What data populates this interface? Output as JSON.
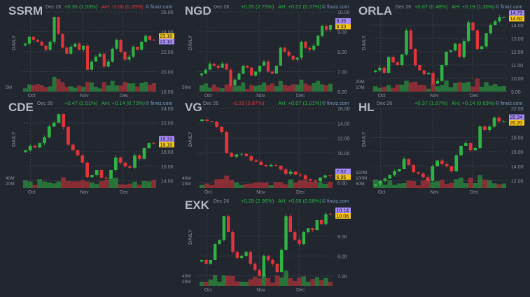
{
  "colors": {
    "background": "#22262f",
    "up": "#2fb344",
    "down": "#e0353b",
    "ah_tag": "#a78bfa",
    "close_tag": "#f5c518",
    "text": "#8a91a0",
    "ticker": "#b4b9c4"
  },
  "common": {
    "date": "Dec 26",
    "ah_prefix": "AH:",
    "source": "© finviz.com",
    "timeframe": "DAILY",
    "months": [
      "Oct",
      "Nov",
      "Dec"
    ]
  },
  "chart_data": [
    {
      "type": "candlestick",
      "ticker": "SSRM",
      "change": "+0.35 (1.53%)",
      "change_dir": "up",
      "ah": "-0.06 (0.26%)",
      "ah_dir": "down",
      "ylim": [
        18,
        26
      ],
      "yticks": [
        "26.00",
        "24.00",
        "22.00",
        "20.00",
        "18.00"
      ],
      "close_tag": "23.16",
      "ah_tag": "23.10",
      "tag_order": [
        "close",
        "ah"
      ],
      "volume_labels": [
        "5M"
      ],
      "closes": [
        22.8,
        23.5,
        23.2,
        23.0,
        22.6,
        22.2,
        23.0,
        25.5,
        23.8,
        22.4,
        21.8,
        22.5,
        22.8,
        22.2,
        22.6,
        20.2,
        21.0,
        21.5,
        21.8,
        20.5,
        21.0,
        22.3,
        23.2,
        22.0,
        21.2,
        21.5,
        22.5,
        22.2,
        23.0,
        23.6,
        23.2,
        23.16
      ]
    },
    {
      "type": "candlestick",
      "ticker": "NGD",
      "change": "+0.25 (2.75%)",
      "change_dir": "up",
      "ah": "+0.02 (0.27%)",
      "ah_dir": "up",
      "ylim": [
        6,
        10
      ],
      "yticks": [
        "10.00",
        "9.00",
        "8.00",
        "7.00",
        "6.00"
      ],
      "close_tag": "9.33",
      "ah_tag": "9.35",
      "tag_order": [
        "ah",
        "close"
      ],
      "volume_labels": [
        "50M"
      ],
      "closes": [
        6.9,
        7.1,
        7.4,
        7.3,
        7.2,
        7.4,
        7.1,
        6.3,
        6.6,
        6.9,
        7.3,
        7.2,
        6.8,
        7.0,
        7.3,
        7.5,
        7.0,
        6.9,
        7.3,
        8.2,
        8.0,
        7.8,
        7.6,
        7.7,
        8.5,
        8.2,
        8.1,
        8.3,
        8.8,
        9.3,
        9.1,
        9.33
      ]
    },
    {
      "type": "candlestick",
      "ticker": "ORLA",
      "change": "+0.07 (0.48%)",
      "change_dir": "up",
      "ah": "+0.19 (1.30%)",
      "ah_dir": "up",
      "ylim": [
        9,
        15
      ],
      "yticks": [
        "14.00",
        "13.00",
        "12.00",
        "11.00",
        "10.00",
        "9.00"
      ],
      "close_tag": "14.60",
      "ah_tag": "14.79",
      "tag_order": [
        "ah",
        "close"
      ],
      "volume_labels": [
        "20M",
        "10M"
      ],
      "closes": [
        10.6,
        10.8,
        10.4,
        11.6,
        11.2,
        11.0,
        11.8,
        13.6,
        12.2,
        11.0,
        10.6,
        10.3,
        10.4,
        9.6,
        9.8,
        11.0,
        12.0,
        12.1,
        12.6,
        11.6,
        12.8,
        14.2,
        13.6,
        12.2,
        12.4,
        13.4,
        14.0,
        14.3,
        14.6,
        14.6
      ]
    },
    {
      "type": "candlestick",
      "ticker": "CDE",
      "change": "+0.47 (2.51%)",
      "change_dir": "up",
      "ah": "+0.14 (0.73%)",
      "ah_dir": "up",
      "ylim": [
        13,
        24
      ],
      "yticks": [
        "24.00",
        "22.00",
        "18.00",
        "16.00",
        "14.00"
      ],
      "close_tag": "19.19",
      "ah_tag": "19.33",
      "tag_order": [
        "ah",
        "close"
      ],
      "volume_labels": [
        "40M",
        "20M"
      ],
      "closes": [
        18.2,
        18.8,
        18.6,
        19.2,
        20.0,
        21.5,
        22.0,
        23.2,
        21.4,
        19.0,
        18.2,
        17.5,
        16.5,
        14.5,
        14.8,
        15.5,
        14.4,
        14.3,
        15.5,
        17.2,
        16.5,
        16.0,
        15.8,
        17.5,
        17.0,
        18.5,
        19.2,
        19.19
      ]
    },
    {
      "type": "candlestick",
      "ticker": "VG",
      "change": "-0.28 (3.87%)",
      "change_dir": "down",
      "ah": "+0.07 (1.01%)",
      "ah_dir": "up",
      "ylim": [
        5.3,
        16
      ],
      "yticks": [
        "16.00",
        "14.00",
        "12.00",
        "10.00",
        "6.00"
      ],
      "close_tag": "6.95",
      "ah_tag": "7.02",
      "tag_order": [
        "ah",
        "close"
      ],
      "volume_labels": [
        "40M",
        "20M"
      ],
      "closes": [
        14.5,
        14.3,
        14.2,
        13.5,
        12.8,
        10.0,
        9.5,
        9.8,
        9.9,
        9.6,
        9.0,
        8.8,
        8.4,
        8.2,
        8.4,
        8.3,
        7.8,
        7.2,
        7.5,
        7.1,
        7.0,
        6.5,
        6.3,
        6.2,
        6.7,
        7.0,
        6.95
      ]
    },
    {
      "type": "candlestick",
      "ticker": "HL",
      "change": "+0.37 (1.87%)",
      "change_dir": "up",
      "ah": "+0.14 (0.69%)",
      "ah_dir": "up",
      "ylim": [
        11,
        22
      ],
      "yticks": [
        "22.00",
        "18.00",
        "16.00",
        "14.00",
        "12.00"
      ],
      "close_tag": "20.20",
      "ah_tag": "20.34",
      "tag_order": [
        "ah",
        "close"
      ],
      "volume_labels": [
        "150M",
        "100M",
        "50M"
      ],
      "closes": [
        11.5,
        12.0,
        12.3,
        12.8,
        13.3,
        13.6,
        15.0,
        14.2,
        13.2,
        13.0,
        12.5,
        12.0,
        14.0,
        14.8,
        14.3,
        14.0,
        13.3,
        15.5,
        16.8,
        17.2,
        16.2,
        16.5,
        19.5,
        19.0,
        19.5,
        20.7,
        20.2,
        20.2
      ]
    },
    {
      "type": "candlestick",
      "ticker": "EXK",
      "change": "+0.29 (2.96%)",
      "change_dir": "up",
      "ah": "+0.06 (0.58%)",
      "ah_dir": "up",
      "ylim": [
        6.5,
        10.5
      ],
      "yticks": [
        "9.00",
        "8.00",
        "7.00"
      ],
      "close_tag": "10.08",
      "ah_tag": "10.14",
      "tag_order": [
        "ah",
        "close"
      ],
      "volume_labels": [
        "40M",
        "20M"
      ],
      "closes": [
        7.8,
        7.6,
        7.8,
        8.6,
        8.8,
        10.0,
        9.2,
        8.2,
        7.9,
        8.0,
        8.2,
        7.6,
        7.3,
        7.0,
        8.0,
        7.8,
        7.6,
        7.2,
        8.3,
        10.0,
        9.2,
        8.8,
        8.6,
        9.2,
        9.4,
        9.3,
        9.8,
        9.6,
        10.1,
        10.08
      ]
    }
  ]
}
